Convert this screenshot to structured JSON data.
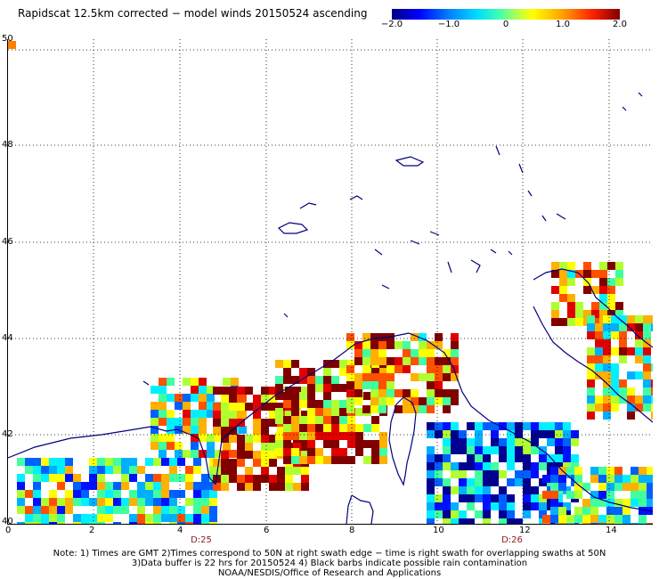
{
  "title": "Rapidscat 12.5km corrected − model winds 20150524 ascending",
  "colorbar": {
    "labels": [
      "−2.0",
      "−1.0",
      "0",
      "1.0",
      "2.0"
    ],
    "range": [
      -2.0,
      2.0
    ]
  },
  "axes": {
    "x_ticks": [
      "0",
      "2",
      "4",
      "6",
      "8",
      "10",
      "12",
      "14"
    ],
    "y_ticks": [
      "40",
      "42",
      "44",
      "46",
      "48",
      "50"
    ],
    "x_range": [
      0,
      15
    ],
    "y_range": [
      40,
      50
    ]
  },
  "time_marks": [
    {
      "label": "D:25",
      "lon": 4.5
    },
    {
      "label": "D:26",
      "lon": 11.7
    }
  ],
  "notes": {
    "line1": "Note: 1) Times are GMT 2)Times correspond to 50N at right swath edge − time is right swath for overlapping swaths at 50N",
    "line2": "3)Data buffer is 22 hrs for 20150524 4) Black barbs indicate possible rain contamination",
    "line3": "NOAA/NESDIS/Office of Research and Applications"
  },
  "colors": {
    "coastline": "#000080",
    "grid": "#000000"
  }
}
